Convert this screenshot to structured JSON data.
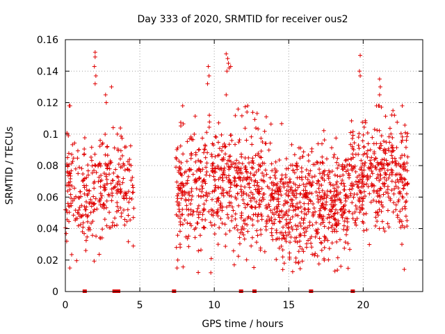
{
  "chart_data": {
    "type": "scatter",
    "title": "Day 333 of 2020, SRMTID for receiver ous2",
    "xlabel": "GPS time / hours",
    "ylabel": "SRMTID / TECUs",
    "xlim": [
      0,
      24
    ],
    "ylim": [
      0,
      0.16
    ],
    "xticks": [
      0,
      5,
      10,
      15,
      20
    ],
    "xtick_labels": [
      "0",
      "5",
      "10",
      "15",
      "20"
    ],
    "yticks": [
      0,
      0.02,
      0.04,
      0.06,
      0.08,
      0.1,
      0.12,
      0.14,
      0.16
    ],
    "ytick_labels": [
      "0",
      "0.02",
      "0.04",
      "0.06",
      "0.08",
      "0.1",
      "0.12",
      "0.14",
      "0.16"
    ],
    "grid": true,
    "marker": "plus",
    "color": "#e00000",
    "zero_markers_x": [
      1.3,
      3.3,
      3.55,
      7.3,
      11.8,
      12.7,
      16.5,
      19.3
    ],
    "segments": [
      {
        "x_start": 0.0,
        "x_end": 4.6,
        "y_median": 0.065,
        "y_spread": 0.018,
        "count": 320,
        "seed": 11
      },
      {
        "x_start": 7.4,
        "x_end": 13.5,
        "y_median": 0.068,
        "y_spread": 0.019,
        "count": 560,
        "seed": 23
      },
      {
        "x_start": 13.5,
        "x_end": 19.0,
        "y_median": 0.055,
        "y_spread": 0.017,
        "count": 560,
        "seed": 37
      },
      {
        "x_start": 19.0,
        "x_end": 23.0,
        "y_median": 0.072,
        "y_spread": 0.018,
        "count": 380,
        "seed": 41
      }
    ],
    "notable_points": [
      {
        "x": 2.0,
        "y": 0.152
      },
      {
        "x": 2.0,
        "y": 0.149
      },
      {
        "x": 1.95,
        "y": 0.143
      },
      {
        "x": 2.05,
        "y": 0.137
      },
      {
        "x": 2.0,
        "y": 0.132
      },
      {
        "x": 3.1,
        "y": 0.13
      },
      {
        "x": 2.7,
        "y": 0.125
      },
      {
        "x": 2.75,
        "y": 0.12
      },
      {
        "x": 0.3,
        "y": 0.015
      },
      {
        "x": 9.6,
        "y": 0.143
      },
      {
        "x": 9.65,
        "y": 0.137
      },
      {
        "x": 9.55,
        "y": 0.132
      },
      {
        "x": 10.8,
        "y": 0.151
      },
      {
        "x": 10.9,
        "y": 0.148
      },
      {
        "x": 10.95,
        "y": 0.145
      },
      {
        "x": 11.1,
        "y": 0.143
      },
      {
        "x": 11.0,
        "y": 0.142
      },
      {
        "x": 10.85,
        "y": 0.14
      },
      {
        "x": 10.8,
        "y": 0.125
      },
      {
        "x": 7.5,
        "y": 0.015
      },
      {
        "x": 7.55,
        "y": 0.02
      },
      {
        "x": 14.6,
        "y": 0.014
      },
      {
        "x": 14.7,
        "y": 0.018
      },
      {
        "x": 14.6,
        "y": 0.022
      },
      {
        "x": 18.1,
        "y": 0.013
      },
      {
        "x": 18.5,
        "y": 0.016
      },
      {
        "x": 19.8,
        "y": 0.15
      },
      {
        "x": 19.75,
        "y": 0.14
      },
      {
        "x": 19.8,
        "y": 0.137
      },
      {
        "x": 21.1,
        "y": 0.135
      },
      {
        "x": 21.15,
        "y": 0.13
      },
      {
        "x": 21.1,
        "y": 0.125
      },
      {
        "x": 20.9,
        "y": 0.118
      },
      {
        "x": 22.0,
        "y": 0.115
      },
      {
        "x": 22.1,
        "y": 0.112
      },
      {
        "x": 22.6,
        "y": 0.03
      }
    ]
  }
}
